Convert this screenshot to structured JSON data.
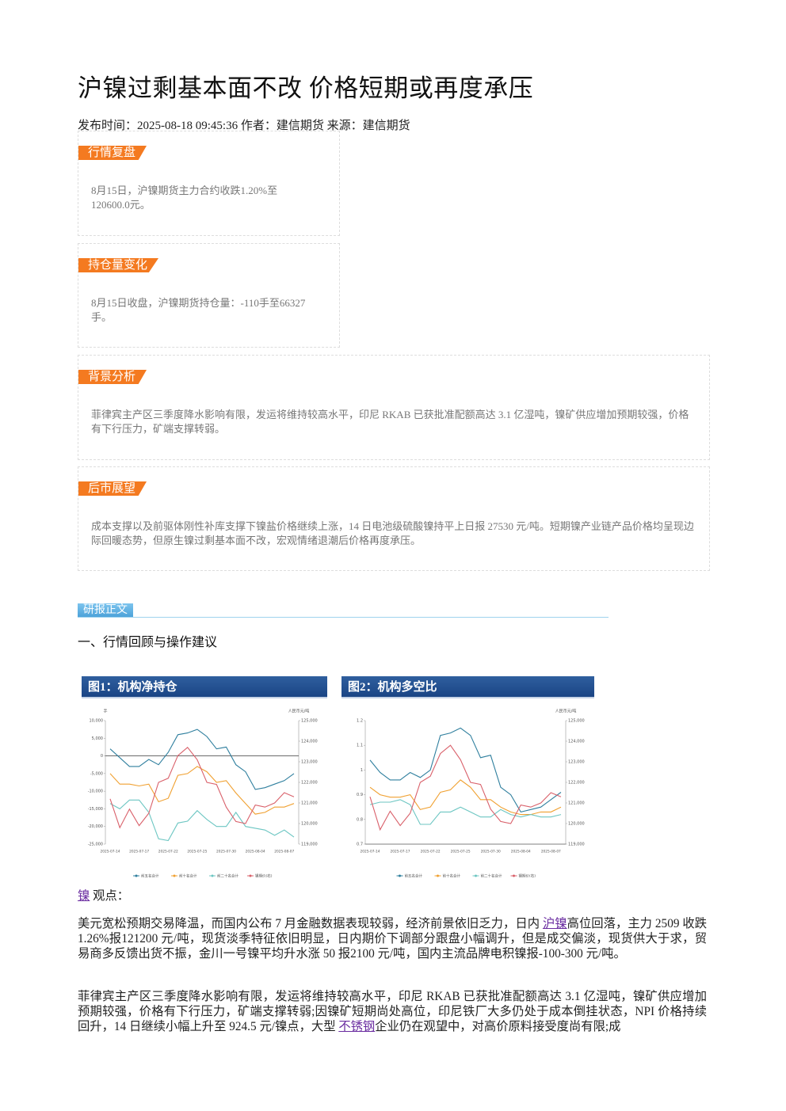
{
  "header": {
    "title": "沪镍过剩基本面不改 价格短期或再度承压",
    "meta": "发布时间：2025-08-18 09:45:36 作者：建信期货 来源：建信期货"
  },
  "boxes": [
    {
      "tag": "行情复盘",
      "text": "8月15日，沪镍期货主力合约收跌1.20%至120600.0元。"
    },
    {
      "tag": "持仓量变化",
      "text": "8月15日收盘，沪镍期货持仓量：-110手至66327手。"
    },
    {
      "tag": "背景分析",
      "text": "菲律宾主产区三季度降水影响有限，发运将维持较高水平，印尼 RKAB 已获批准配额高达 3.1 亿湿吨，镍矿供应增加预期较强，价格有下行压力，矿端支撑转弱。"
    },
    {
      "tag": "后市展望",
      "text": "成本支撑以及前驱体刚性补库支撑下镍盐价格继续上涨，14 日电池级硫酸镍持平上日报 27530 元/吨。短期镍产业链产品价格均呈现边际回暖态势，但原生镍过剩基本面不改，宏观情绪退潮后价格再度承压。"
    }
  ],
  "section": {
    "tag": "研报正文",
    "heading": "一、行情回顾与操作建议"
  },
  "chart_data": [
    {
      "type": "line",
      "title": "图1：机构净持仓",
      "ylabel": "手",
      "y2label": "人民币元/吨",
      "categories": [
        "2025-07-14",
        null,
        null,
        "2025-07-17",
        null,
        null,
        "2025-07-22",
        null,
        null,
        "2025-07-25",
        null,
        null,
        "2025-07-30",
        null,
        null,
        "2025-08-04",
        null,
        null,
        "2025-08-07",
        null
      ],
      "ylim": [
        -25000,
        10000
      ],
      "yticks": [
        {
          "value": 10000,
          "label": "10,000"
        },
        {
          "value": 5000,
          "label": "5,000"
        },
        0,
        {
          "value": -5000,
          "label": "-5,000"
        },
        {
          "value": -10000,
          "label": "-10,000"
        },
        {
          "value": -15000,
          "label": "-15,000"
        },
        {
          "value": -20000,
          "label": "-20,000"
        },
        {
          "value": -25000,
          "label": "-25,000"
        }
      ],
      "y2lim": [
        119000,
        125000
      ],
      "y2ticks": [
        {
          "value": 125000,
          "label": "125,000"
        },
        {
          "value": 124000,
          "label": "124,000"
        },
        {
          "value": 123000,
          "label": "123,000"
        },
        {
          "value": 122000,
          "label": "122,000"
        },
        {
          "value": 121000,
          "label": "121,000"
        },
        {
          "value": 120000,
          "label": "120,000"
        },
        {
          "value": 119000,
          "label": "119,000"
        }
      ],
      "series": [
        {
          "name": "前五名合计",
          "color": "#2f7f9e",
          "values": [
            2000,
            -500,
            -3000,
            -3000,
            -1000,
            -2500,
            1000,
            6000,
            6500,
            7500,
            5500,
            2000,
            2500,
            -2500,
            -4500,
            -9500,
            -9000,
            -8000,
            -7000,
            -5000
          ]
        },
        {
          "name": "前十名合计",
          "color": "#f0a030",
          "values": [
            -5000,
            -8000,
            -8000,
            -8500,
            -8000,
            -13000,
            -12000,
            -5500,
            -5000,
            -3000,
            -4500,
            -7500,
            -7000,
            -10500,
            -13500,
            -16500,
            -16000,
            -14500,
            -14500,
            -13500
          ]
        },
        {
          "name": "前二十名合计",
          "color": "#6cc6c2",
          "values": [
            -13500,
            -15000,
            -12500,
            -12500,
            -16000,
            -23500,
            -24000,
            -19000,
            -18500,
            -15500,
            -18000,
            -20000,
            -20000,
            -16000,
            -20000,
            -20500,
            -21000,
            -22500,
            -21000,
            -23000
          ]
        },
        {
          "name": "镍期价(右)",
          "color": "#d9606a",
          "axis": "y2",
          "values": [
            121200,
            119800,
            120700,
            119900,
            120500,
            122000,
            122200,
            123300,
            123700,
            123100,
            122000,
            121900,
            120800,
            120100,
            120000,
            120900,
            120800,
            121000,
            121500,
            121300
          ]
        }
      ]
    },
    {
      "type": "line",
      "title": "图2：机构多空比",
      "y2label": "人民币元/吨",
      "categories": [
        "2025-07-14",
        null,
        null,
        "2025-07-17",
        null,
        null,
        "2025-07-22",
        null,
        null,
        "2025-07-25",
        null,
        null,
        "2025-07-30",
        null,
        null,
        "2025-08-04",
        null,
        null,
        "2025-08-07",
        null
      ],
      "ylim": [
        0.7,
        1.2
      ],
      "yticks": [
        1.2,
        1.1,
        1,
        0.9,
        0.8,
        0.7
      ],
      "y2lim": [
        119000,
        125000
      ],
      "y2ticks": [
        {
          "value": 125000,
          "label": "125,000"
        },
        {
          "value": 124000,
          "label": "124,000"
        },
        {
          "value": 123000,
          "label": "123,000"
        },
        {
          "value": 122000,
          "label": "122,000"
        },
        {
          "value": 121000,
          "label": "121,000"
        },
        {
          "value": 120000,
          "label": "120,000"
        },
        {
          "value": 119000,
          "label": "119,000"
        }
      ],
      "series": [
        {
          "name": "前五名合计",
          "color": "#2f7f9e",
          "values": [
            1.04,
            0.99,
            0.96,
            0.96,
            0.99,
            0.97,
            1.0,
            1.14,
            1.15,
            1.17,
            1.14,
            1.05,
            1.06,
            0.93,
            0.9,
            0.83,
            0.84,
            0.85,
            0.88,
            0.91
          ]
        },
        {
          "name": "前十名合计",
          "color": "#f0a030",
          "values": [
            0.93,
            0.9,
            0.89,
            0.89,
            0.9,
            0.84,
            0.85,
            0.91,
            0.92,
            0.96,
            0.93,
            0.88,
            0.88,
            0.85,
            0.83,
            0.82,
            0.82,
            0.83,
            0.83,
            0.85
          ]
        },
        {
          "name": "前二十名合计",
          "color": "#6cc6c2",
          "values": [
            0.86,
            0.87,
            0.87,
            0.88,
            0.86,
            0.78,
            0.78,
            0.83,
            0.83,
            0.85,
            0.83,
            0.81,
            0.81,
            0.84,
            0.82,
            0.81,
            0.82,
            0.81,
            0.81,
            0.82
          ]
        },
        {
          "name": "镍期价(右)",
          "color": "#d9606a",
          "axis": "y2",
          "values": [
            121300,
            119700,
            120600,
            119900,
            120500,
            122000,
            122300,
            123400,
            123800,
            123100,
            122000,
            121900,
            120700,
            120100,
            120000,
            120900,
            120800,
            121000,
            121500,
            121300
          ]
        }
      ]
    }
  ],
  "body": {
    "link": "镍",
    "after": "观点：",
    "paragraphs": [
      [
        "美元宽松预期交易降温，而国内公布 7 月金融数据表现较弱，经济前景依旧乏力，日内 ",
        "沪镍",
        "高位回落，主力 2509 收跌 1.26%报121200 元/吨，现货淡季特征依旧明显，日内期价下调部分跟盘小幅调升，但是成交偏淡，现货供大于求，贸易商多反馈出货不振，金川一号镍平均升水涨 50 报2100 元/吨，国内主流品牌电积镍报-100-300 元/吨。"
      ],
      [
        "菲律宾主产区三季度降水影响有限，发运将维持较高水平，印尼 RKAB 已获批准配额高达 3.1 亿湿吨，镍矿供应增加预期较强，价格有下行压力，矿端支撑转弱;因镍矿短期尚处高位，印尼铁厂大多仍处于成本倒挂状态，NPI 价格持续回升，14 日继续小幅上升至 924.5 元/镍点，大型 ",
        "不锈钢",
        "企业仍在观望中，对高价原料接受度尚有限;成"
      ]
    ]
  }
}
